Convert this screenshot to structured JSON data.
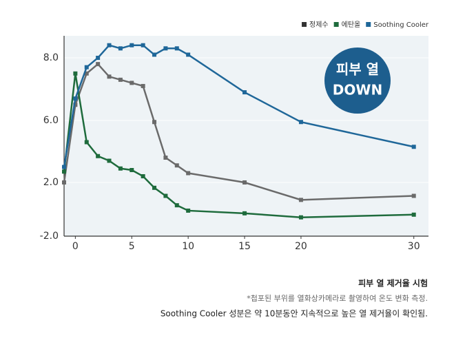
{
  "chart_data": {
    "type": "line",
    "x": [
      -1,
      0,
      1,
      2,
      3,
      4,
      5,
      6,
      7,
      8,
      9,
      10,
      15,
      20,
      30
    ],
    "series": [
      {
        "name": "정제수",
        "color": "#6a6a6a",
        "values": [
          2.0,
          6.5,
          7.5,
          7.8,
          7.4,
          7.3,
          7.2,
          7.1,
          5.9,
          3.6,
          3.1,
          2.6,
          2.0,
          0.7,
          1.0
        ]
      },
      {
        "name": "에탄올",
        "color": "#1e6b3c",
        "values": [
          2.7,
          7.5,
          4.6,
          3.7,
          3.4,
          2.9,
          2.8,
          2.4,
          1.6,
          1.0,
          0.3,
          -0.1,
          -0.3,
          -0.6,
          -0.4
        ]
      },
      {
        "name": "Soothing Cooler",
        "color": "#1f6799",
        "values": [
          3.0,
          6.7,
          7.7,
          8.0,
          8.4,
          8.3,
          8.4,
          8.4,
          8.1,
          8.3,
          8.3,
          8.1,
          6.9,
          5.9,
          4.3
        ]
      }
    ],
    "xlim": [
      -1,
      31.3
    ],
    "xticks": [
      0,
      5,
      10,
      15,
      20,
      30
    ],
    "ylim": [
      -2,
      8.7
    ],
    "yticks": [
      {
        "value": -2,
        "label": "-2.0"
      },
      {
        "value": 2,
        "label": "2.0"
      },
      {
        "value": 6,
        "label": "6.0"
      },
      {
        "value": 8,
        "label": "8.0"
      }
    ],
    "grid": true,
    "legend": "top-right",
    "annotations": [
      "피부 열",
      "DOWN"
    ]
  },
  "caption": {
    "title": "피부 열 제거율 시험",
    "note": "*첩포된 부위를 열화상카메라로 촬영하여 온도 변화 측정.",
    "summary": "Soothing Cooler 성분은 약 10분동안 지속적으로 높은 열 제거율이 확인됨."
  }
}
